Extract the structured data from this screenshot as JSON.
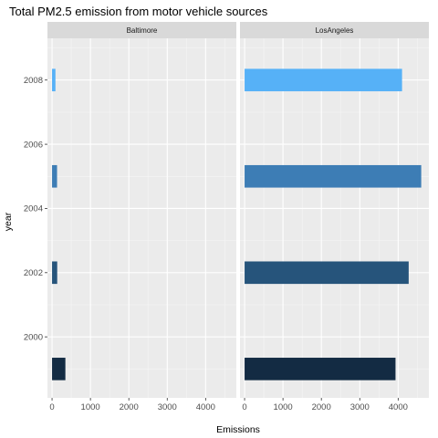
{
  "chart_data": {
    "type": "bar",
    "orientation": "horizontal",
    "title": "Total PM2.5 emission from motor vehicle sources",
    "xlabel": "Emissions",
    "ylabel": "year",
    "xlim": [
      -120,
      4800
    ],
    "ylim": [
      1998.1,
      2009.3
    ],
    "xticks": [
      0,
      1000,
      2000,
      3000,
      4000
    ],
    "yticks": [
      2000,
      2002,
      2004,
      2006,
      2008
    ],
    "grid": true,
    "legend": "none",
    "panels": [
      {
        "name": "Baltimore",
        "bars": [
          {
            "year": 1999,
            "value": 347,
            "color": "#132B43"
          },
          {
            "year": 2002,
            "value": 134,
            "color": "#26547B"
          },
          {
            "year": 2005,
            "value": 130,
            "color": "#3D7DB5"
          },
          {
            "year": 2008,
            "value": 88,
            "color": "#56B1F7"
          }
        ]
      },
      {
        "name": "LosAngeles",
        "bars": [
          {
            "year": 1999,
            "value": 3931,
            "color": "#132B43"
          },
          {
            "year": 2002,
            "value": 4274,
            "color": "#26547B"
          },
          {
            "year": 2005,
            "value": 4601,
            "color": "#3D7DB5"
          },
          {
            "year": 2008,
            "value": 4101,
            "color": "#56B1F7"
          }
        ]
      }
    ]
  }
}
